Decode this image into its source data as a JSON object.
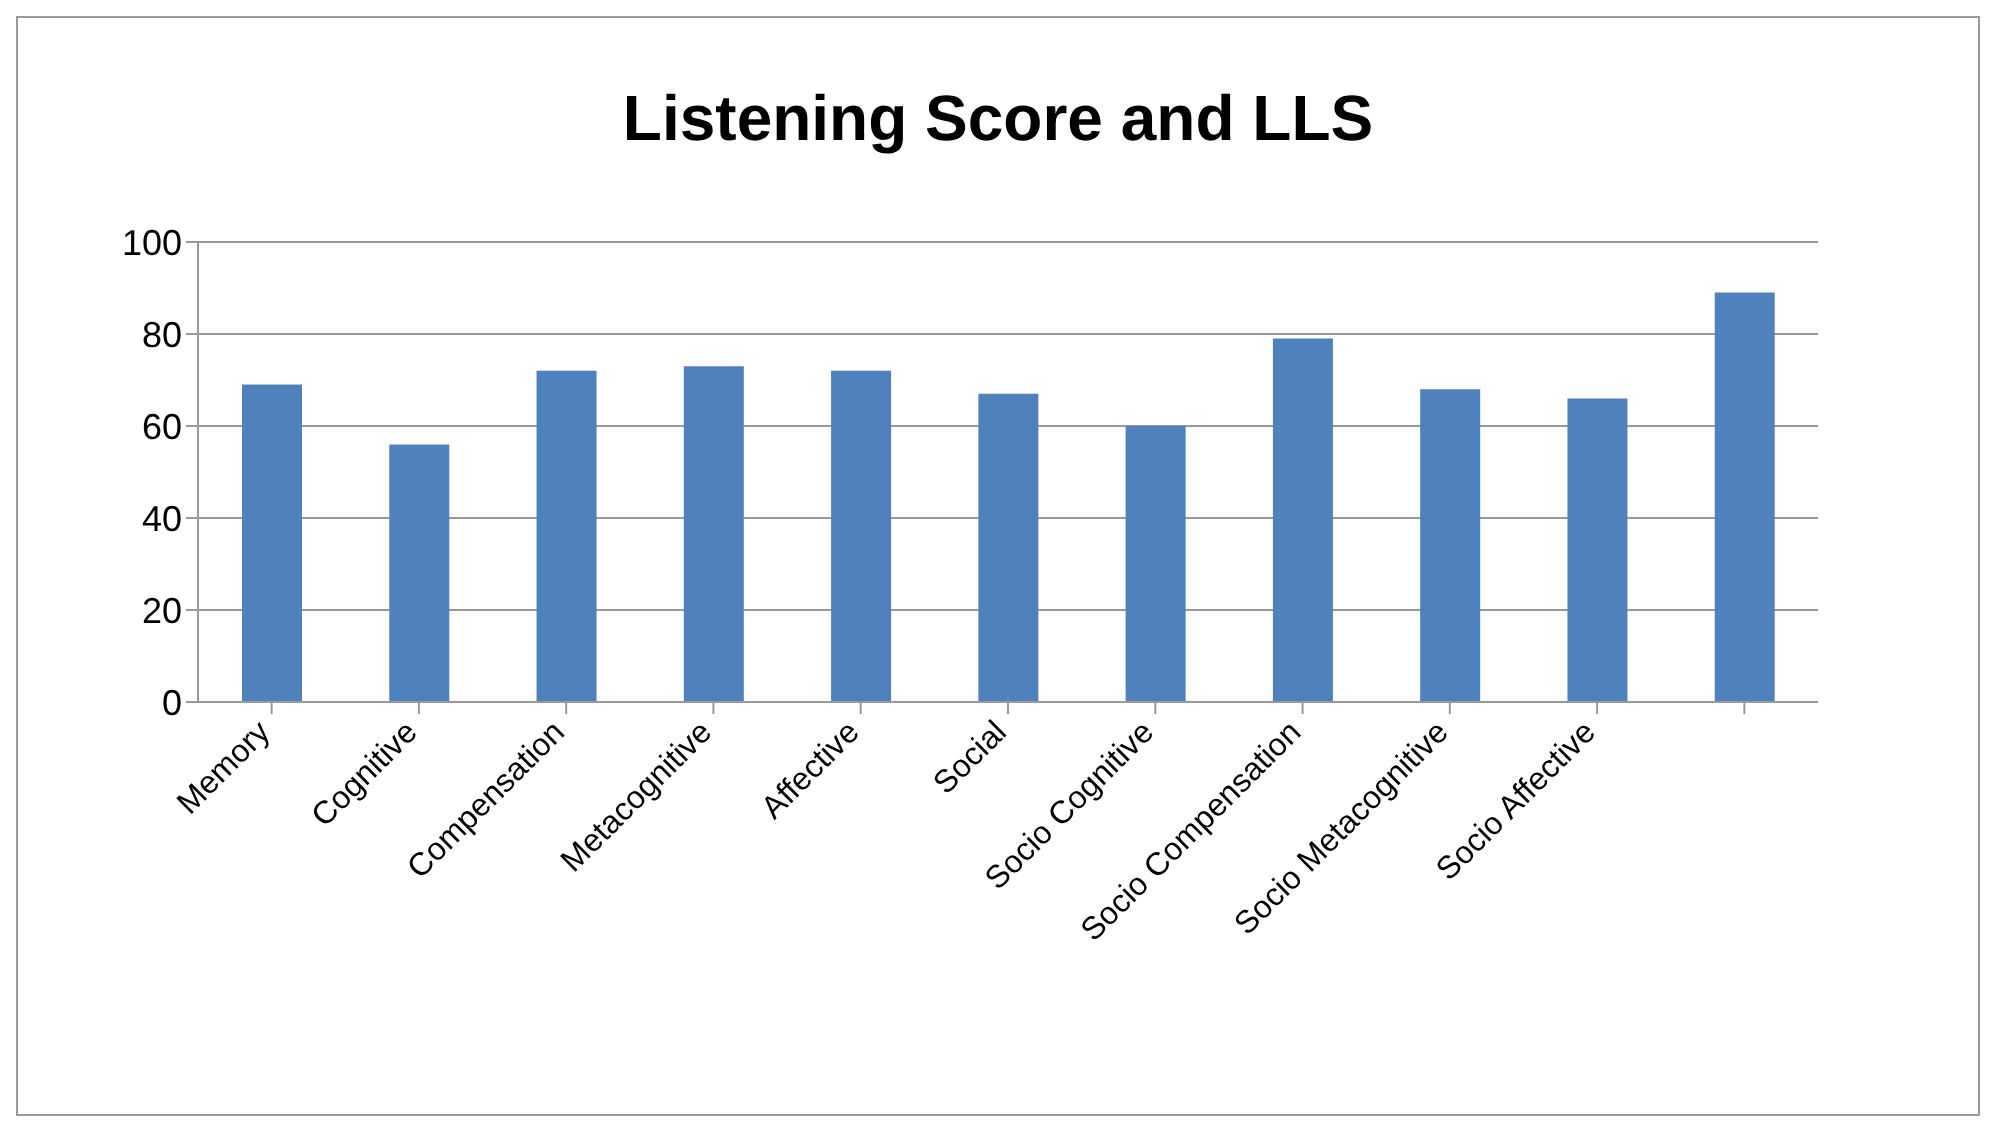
{
  "chart_data": {
    "type": "bar",
    "title": "Listening Score and LLS",
    "categories": [
      "Memory",
      "Cognitive",
      "Compensation",
      "Metacognitive",
      "Affective",
      "Social",
      "Socio Cognitive",
      "Socio Compensation",
      "Socio Metacognitive",
      "Socio Affective",
      null
    ],
    "values": [
      69,
      56,
      72,
      73,
      72,
      67,
      60,
      79,
      68,
      66,
      89
    ],
    "color": "#4f81bd",
    "ylim": [
      0,
      100
    ],
    "yticks": [
      0,
      20,
      40,
      60,
      80,
      100
    ],
    "grid": "y"
  }
}
